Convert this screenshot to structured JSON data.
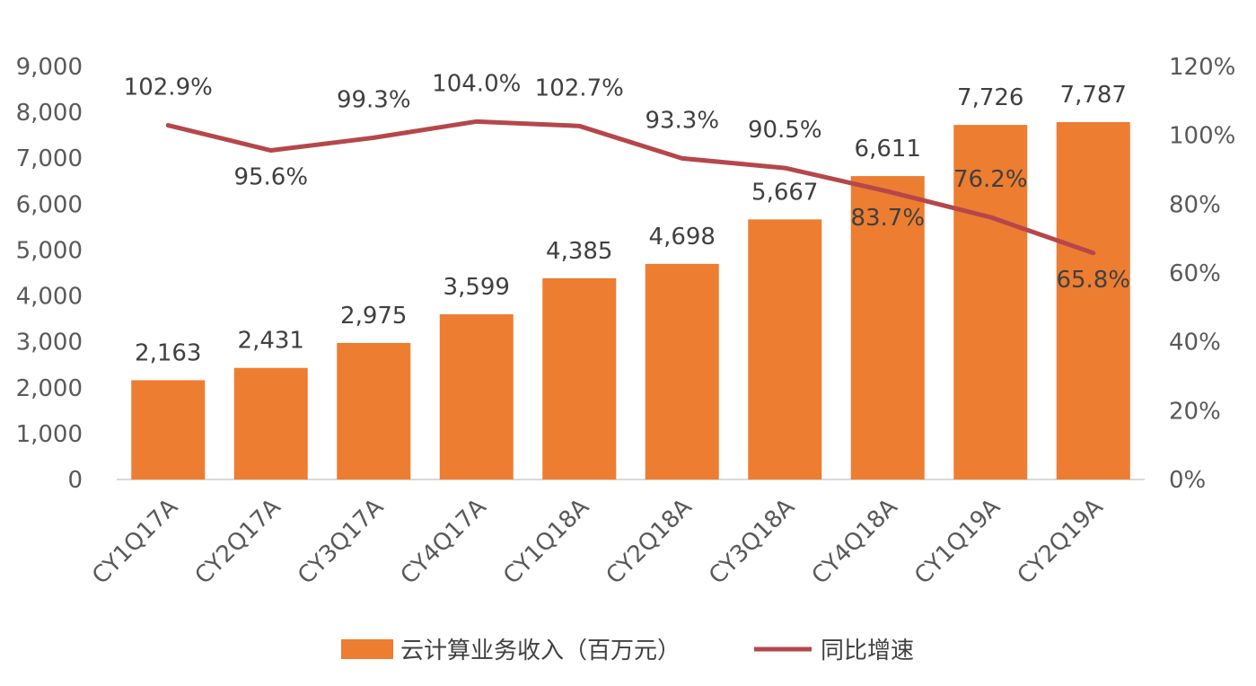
{
  "chart_data": {
    "type": "bar",
    "categories": [
      "CY1Q17A",
      "CY2Q17A",
      "CY3Q17A",
      "CY4Q17A",
      "CY1Q18A",
      "CY2Q18A",
      "CY3Q18A",
      "CY4Q18A",
      "CY1Q19A",
      "CY2Q19A"
    ],
    "series": [
      {
        "name": "云计算业务收入（百万元）",
        "type": "bar",
        "axis": "left",
        "color": "#ED7D31",
        "values": [
          2163,
          2431,
          2975,
          3599,
          4385,
          4698,
          5667,
          6611,
          7726,
          7787
        ],
        "labels": [
          "2,163",
          "2,431",
          "2,975",
          "3,599",
          "4,385",
          "4,698",
          "5,667",
          "6,611",
          "7,726",
          "7,787"
        ]
      },
      {
        "name": "同比增速",
        "type": "line",
        "axis": "right",
        "color": "#B5474B",
        "values": [
          102.9,
          95.6,
          99.3,
          104.0,
          102.7,
          93.3,
          90.5,
          83.7,
          76.2,
          65.8
        ],
        "labels": [
          "102.9%",
          "95.6%",
          "99.3%",
          "104.0%",
          "102.7%",
          "93.3%",
          "90.5%",
          "83.7%",
          "76.2%",
          "65.8%"
        ]
      }
    ],
    "y_left": {
      "ylim": [
        0,
        9000
      ],
      "ticks": [
        0,
        1000,
        2000,
        3000,
        4000,
        5000,
        6000,
        7000,
        8000,
        9000
      ],
      "tick_labels": [
        "0",
        "1,000",
        "2,000",
        "3,000",
        "4,000",
        "5,000",
        "6,000",
        "7,000",
        "8,000",
        "9,000"
      ]
    },
    "y_right": {
      "ylim": [
        0,
        120
      ],
      "ticks": [
        0,
        20,
        40,
        60,
        80,
        100,
        120
      ],
      "tick_labels": [
        "0%",
        "20%",
        "40%",
        "60%",
        "80%",
        "100%",
        "120%"
      ]
    },
    "title": "",
    "xlabel": "",
    "grid": false,
    "legend": "bottom-center"
  }
}
